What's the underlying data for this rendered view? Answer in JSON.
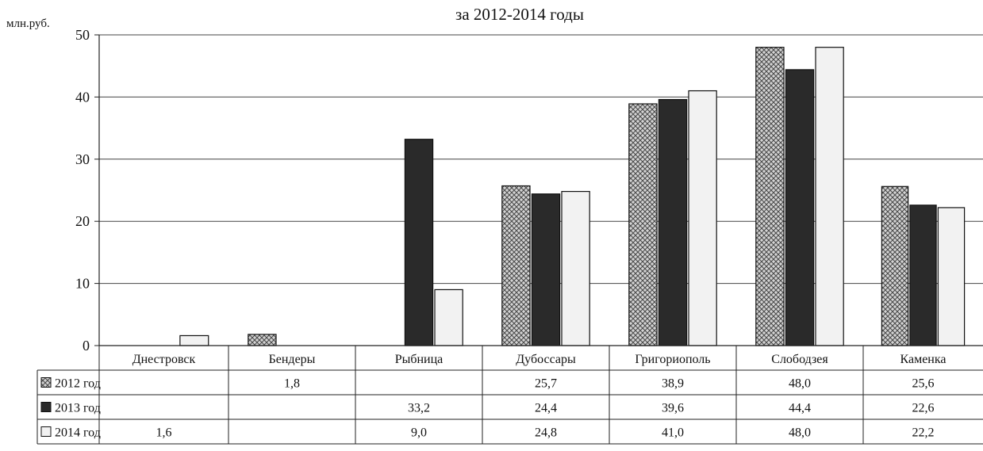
{
  "chart_data": {
    "type": "bar",
    "title": "за 2012-2014 годы",
    "ylabel": "млн.руб.",
    "ylim": [
      0,
      50
    ],
    "yticks": [
      0,
      10,
      20,
      30,
      40,
      50
    ],
    "grid": true,
    "legend": "table-left",
    "categories": [
      "Днестровск",
      "Бендеры",
      "Рыбница",
      "Дубоссары",
      "Григориополь",
      "Слободзея",
      "Каменка"
    ],
    "series": [
      {
        "name": "2012 год",
        "pattern": "crosshatch",
        "color": "#9a9a9a",
        "values": [
          null,
          1.8,
          null,
          25.7,
          38.9,
          48.0,
          25.6
        ],
        "labels": [
          "",
          "1,8",
          "",
          "25,7",
          "38,9",
          "48,0",
          "25,6"
        ]
      },
      {
        "name": "2013 год",
        "pattern": "solid",
        "color": "#2a2a2a",
        "values": [
          null,
          null,
          33.2,
          24.4,
          39.6,
          44.4,
          22.6
        ],
        "labels": [
          "",
          "",
          "33,2",
          "24,4",
          "39,6",
          "44,4",
          "22,6"
        ]
      },
      {
        "name": "2014 год",
        "pattern": "solid",
        "color": "#f2f2f2",
        "values": [
          1.6,
          null,
          9.0,
          24.8,
          41.0,
          48.0,
          22.2
        ],
        "labels": [
          "1,6",
          "",
          "9,0",
          "24,8",
          "41,0",
          "48,0",
          "22,2"
        ]
      }
    ]
  }
}
